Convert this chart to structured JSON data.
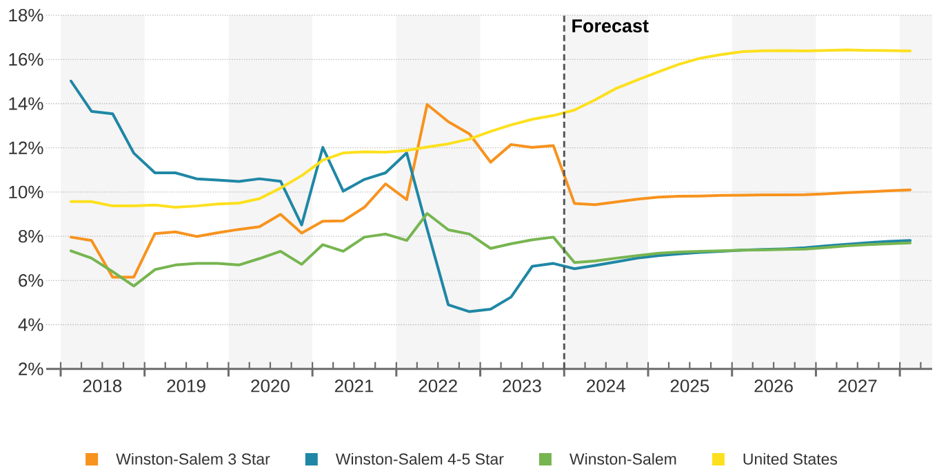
{
  "chart_data": {
    "type": "line",
    "x": [
      "2018-02-15",
      "2018-05-15",
      "2018-08-15",
      "2018-11-15",
      "2019-02-15",
      "2019-05-15",
      "2019-08-15",
      "2019-11-15",
      "2020-02-15",
      "2020-05-15",
      "2020-08-15",
      "2020-11-15",
      "2021-02-15",
      "2021-05-15",
      "2021-08-15",
      "2021-11-15",
      "2022-02-15",
      "2022-05-15",
      "2022-08-15",
      "2022-11-15",
      "2023-02-15",
      "2023-05-15",
      "2023-08-15",
      "2023-11-15",
      "2024-02-15",
      "2024-05-15",
      "2024-08-15",
      "2024-11-15",
      "2025-02-15",
      "2025-05-15",
      "2025-08-15",
      "2025-11-15",
      "2026-02-15",
      "2026-05-15",
      "2026-08-15",
      "2026-11-15",
      "2027-02-15",
      "2027-05-15",
      "2027-08-15",
      "2027-11-15",
      "2028-02-15"
    ],
    "series": [
      {
        "name": "Winston-Salem 3 Star",
        "color": "#f7931e",
        "values": [
          7.96,
          7.81,
          6.15,
          6.15,
          8.12,
          8.2,
          7.99,
          8.16,
          8.31,
          8.43,
          8.99,
          8.14,
          8.68,
          8.7,
          9.31,
          10.37,
          9.66,
          13.96,
          13.18,
          12.63,
          11.35,
          12.15,
          12.02,
          12.1,
          9.48,
          9.43,
          9.55,
          9.68,
          9.77,
          9.81,
          9.82,
          9.85,
          9.86,
          9.87,
          9.87,
          9.88,
          9.92,
          9.97,
          10.01,
          10.06,
          10.1
        ]
      },
      {
        "name": "Winston-Salem 4-5 Star",
        "color": "#1f87a5",
        "values": [
          15.02,
          13.65,
          13.54,
          11.76,
          10.87,
          10.87,
          10.6,
          10.54,
          10.48,
          10.6,
          10.49,
          8.51,
          12.02,
          10.04,
          10.57,
          10.87,
          11.77,
          8.33,
          4.9,
          4.59,
          4.7,
          5.25,
          6.64,
          6.77,
          6.53,
          6.68,
          6.84,
          7.01,
          7.12,
          7.2,
          7.27,
          7.32,
          7.37,
          7.4,
          7.43,
          7.48,
          7.57,
          7.64,
          7.71,
          7.77,
          7.81
        ]
      },
      {
        "name": "Winston-Salem",
        "color": "#77b550",
        "values": [
          7.34,
          7.01,
          6.4,
          5.75,
          6.49,
          6.7,
          6.77,
          6.77,
          6.7,
          6.99,
          7.32,
          6.73,
          7.62,
          7.32,
          7.96,
          8.1,
          7.81,
          9.03,
          8.29,
          8.1,
          7.45,
          7.66,
          7.84,
          7.96,
          6.81,
          6.88,
          7.01,
          7.12,
          7.23,
          7.29,
          7.32,
          7.34,
          7.37,
          7.38,
          7.4,
          7.42,
          7.49,
          7.57,
          7.62,
          7.66,
          7.7
        ]
      },
      {
        "name": "United States",
        "color": "#fce01e",
        "values": [
          9.57,
          9.57,
          9.37,
          9.37,
          9.41,
          9.31,
          9.37,
          9.46,
          9.5,
          9.7,
          10.18,
          10.74,
          11.44,
          11.77,
          11.82,
          11.8,
          11.88,
          12.04,
          12.18,
          12.4,
          12.74,
          13.04,
          13.29,
          13.46,
          13.71,
          14.17,
          14.69,
          15.07,
          15.44,
          15.78,
          16.05,
          16.22,
          16.35,
          16.39,
          16.4,
          16.38,
          16.41,
          16.43,
          16.41,
          16.4,
          16.38
        ]
      }
    ],
    "xlim": [
      "2017-10-30",
      "2028-05-21"
    ],
    "xticks": [
      {
        "value": "2018-01-01",
        "label": null
      },
      {
        "value": "2018-04-01",
        "label": null
      },
      {
        "value": "2018-07-01",
        "label": "2018"
      },
      {
        "value": "2018-10-01",
        "label": null
      },
      {
        "value": "2019-01-01",
        "label": null
      },
      {
        "value": "2019-04-01",
        "label": null
      },
      {
        "value": "2019-07-01",
        "label": "2019"
      },
      {
        "value": "2019-10-01",
        "label": null
      },
      {
        "value": "2020-01-01",
        "label": null
      },
      {
        "value": "2020-04-01",
        "label": null
      },
      {
        "value": "2020-07-01",
        "label": "2020"
      },
      {
        "value": "2020-10-01",
        "label": null
      },
      {
        "value": "2021-01-01",
        "label": null
      },
      {
        "value": "2021-04-01",
        "label": null
      },
      {
        "value": "2021-07-01",
        "label": "2021"
      },
      {
        "value": "2021-10-01",
        "label": null
      },
      {
        "value": "2022-01-01",
        "label": null
      },
      {
        "value": "2022-04-01",
        "label": null
      },
      {
        "value": "2022-07-01",
        "label": "2022"
      },
      {
        "value": "2022-10-01",
        "label": null
      },
      {
        "value": "2023-01-01",
        "label": null
      },
      {
        "value": "2023-04-01",
        "label": null
      },
      {
        "value": "2023-07-01",
        "label": "2023"
      },
      {
        "value": "2023-10-01",
        "label": null
      },
      {
        "value": "2024-01-01",
        "label": null
      },
      {
        "value": "2024-04-01",
        "label": null
      },
      {
        "value": "2024-07-01",
        "label": "2024"
      },
      {
        "value": "2024-10-01",
        "label": null
      },
      {
        "value": "2025-01-01",
        "label": null
      },
      {
        "value": "2025-04-01",
        "label": null
      },
      {
        "value": "2025-07-01",
        "label": "2025"
      },
      {
        "value": "2025-10-01",
        "label": null
      },
      {
        "value": "2026-01-01",
        "label": null
      },
      {
        "value": "2026-04-01",
        "label": null
      },
      {
        "value": "2026-07-01",
        "label": "2026"
      },
      {
        "value": "2026-10-01",
        "label": null
      },
      {
        "value": "2027-01-01",
        "label": null
      },
      {
        "value": "2027-04-01",
        "label": null
      },
      {
        "value": "2027-07-01",
        "label": "2027"
      },
      {
        "value": "2027-10-01",
        "label": null
      },
      {
        "value": "2028-01-01",
        "label": null
      },
      {
        "value": "2028-04-01",
        "label": null
      }
    ],
    "ylim": [
      2,
      18
    ],
    "yticks": [
      {
        "value": 2,
        "label": "2%"
      },
      {
        "value": 4,
        "label": "4%"
      },
      {
        "value": 6,
        "label": "6%"
      },
      {
        "value": 8,
        "label": "8%"
      },
      {
        "value": 10,
        "label": "10%"
      },
      {
        "value": 12,
        "label": "12%"
      },
      {
        "value": 14,
        "label": "14%"
      },
      {
        "value": 16,
        "label": "16%"
      },
      {
        "value": 18,
        "label": "18%"
      }
    ],
    "grid": "y",
    "legend": "bottom",
    "ref_lines": [
      {
        "axis": "x",
        "value": "2024-01-01",
        "label": "Forecast",
        "color": "#555555",
        "line_style": "dashed"
      }
    ],
    "bands": [
      {
        "axis": "x",
        "from": "2018-01-01",
        "to": "2019-01-01",
        "color": "#f5f5f5"
      },
      {
        "axis": "x",
        "from": "2020-01-01",
        "to": "2021-01-01",
        "color": "#f5f5f5"
      },
      {
        "axis": "x",
        "from": "2022-01-01",
        "to": "2023-01-01",
        "color": "#f5f5f5"
      },
      {
        "axis": "x",
        "from": "2024-01-01",
        "to": "2025-01-01",
        "color": "#f5f5f5"
      },
      {
        "axis": "x",
        "from": "2026-01-01",
        "to": "2027-01-01",
        "color": "#f5f5f5"
      },
      {
        "axis": "x",
        "from": "2028-01-01",
        "to": "2028-05-21",
        "color": "#f5f5f5"
      }
    ]
  }
}
